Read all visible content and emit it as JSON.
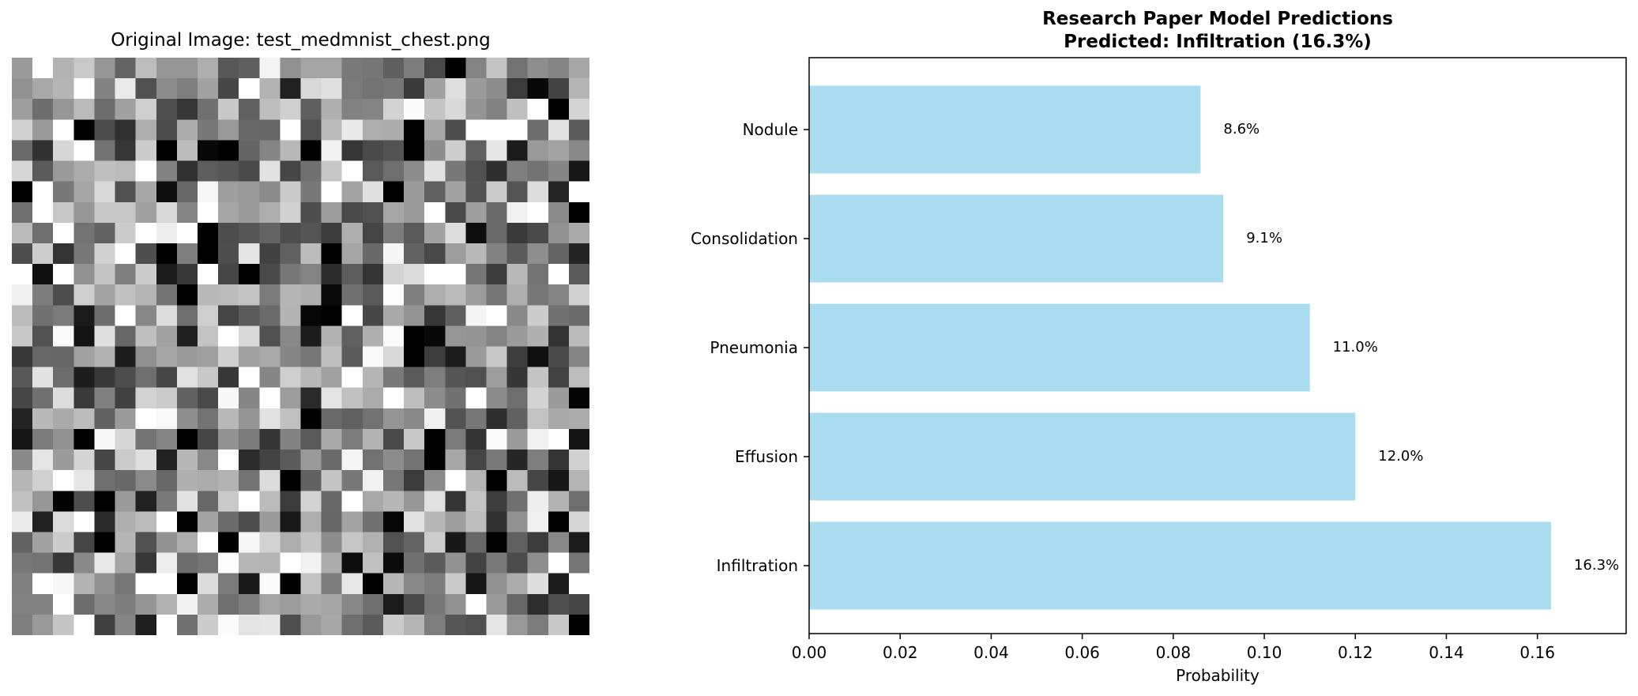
{
  "image_panel": {
    "title": "Original Image: test_medmnist_chest.png",
    "grid_size": 28
  },
  "chart_data": {
    "type": "bar",
    "orientation": "horizontal",
    "title": "Research Paper Model Predictions",
    "subtitle": "Predicted: Infiltration (16.3%)",
    "xlabel": "Probability",
    "ylabel": "",
    "xlim": [
      0,
      0.1795
    ],
    "xticks": [
      0.0,
      0.02,
      0.04,
      0.06,
      0.08,
      0.1,
      0.12,
      0.14,
      0.16
    ],
    "xtick_labels": [
      "0.00",
      "0.02",
      "0.04",
      "0.06",
      "0.08",
      "0.10",
      "0.12",
      "0.14",
      "0.16"
    ],
    "categories": [
      "Infiltration",
      "Effusion",
      "Pneumonia",
      "Consolidation",
      "Nodule"
    ],
    "values": [
      0.163,
      0.12,
      0.11,
      0.091,
      0.086
    ],
    "data_labels": [
      "16.3%",
      "12.0%",
      "11.0%",
      "9.1%",
      "8.6%"
    ],
    "bar_color": "#a8dcee",
    "grid": false,
    "legend": "none"
  }
}
